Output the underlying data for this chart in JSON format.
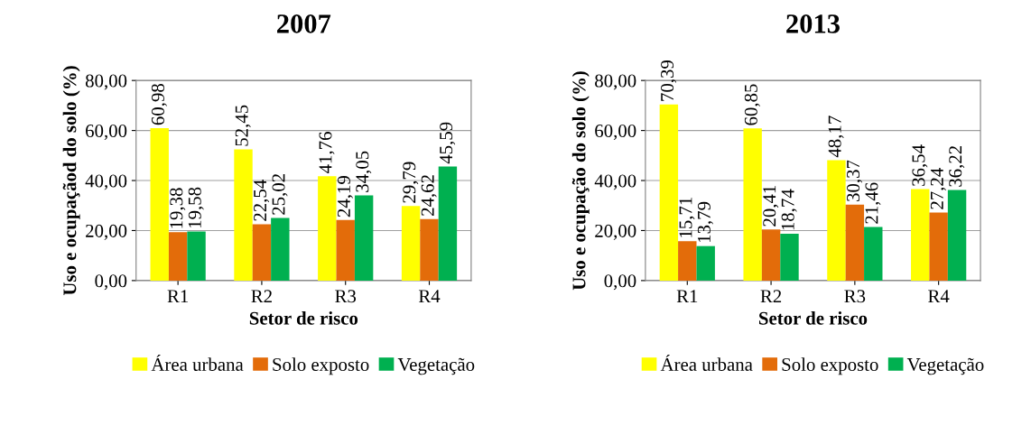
{
  "chart_data": [
    {
      "type": "bar",
      "title": "2007",
      "xlabel": "Setor de risco",
      "ylabel": "Uso e ocupaçãod do solo (%)",
      "categories": [
        "R1",
        "R2",
        "R3",
        "R4"
      ],
      "series": [
        {
          "name": "Área urbana",
          "color": "#ffff00",
          "values": [
            60.98,
            52.45,
            41.76,
            29.79
          ],
          "value_labels": [
            "60,98",
            "52,45",
            "41,76",
            "29,79"
          ]
        },
        {
          "name": "Solo exposto",
          "color": "#e36c0a",
          "values": [
            19.38,
            22.54,
            24.19,
            24.62
          ],
          "value_labels": [
            "19,38",
            "22,54",
            "24,19",
            "24,62"
          ]
        },
        {
          "name": "Vegetação",
          "color": "#00b050",
          "values": [
            19.58,
            25.02,
            34.05,
            45.59
          ],
          "value_labels": [
            "19,58",
            "25,02",
            "34,05",
            "45,59"
          ]
        }
      ],
      "ylim": [
        0,
        80
      ],
      "yticks": [
        {
          "value": 0,
          "label": "0,00"
        },
        {
          "value": 20,
          "label": "20,00"
        },
        {
          "value": 40,
          "label": "40,00"
        },
        {
          "value": 60,
          "label": "60,00"
        },
        {
          "value": 80,
          "label": "80,00"
        }
      ],
      "grid": "y",
      "legend": "bottom"
    },
    {
      "type": "bar",
      "title": "2013",
      "xlabel": "Setor de risco",
      "ylabel": "Uso e ocupação do solo (%)",
      "categories": [
        "R1",
        "R2",
        "R3",
        "R4"
      ],
      "series": [
        {
          "name": "Área urbana",
          "color": "#ffff00",
          "values": [
            70.39,
            60.85,
            48.17,
            36.54
          ],
          "value_labels": [
            "70,39",
            "60,85",
            "48,17",
            "36,54"
          ]
        },
        {
          "name": "Solo exposto",
          "color": "#e36c0a",
          "values": [
            15.71,
            20.41,
            30.37,
            27.24
          ],
          "value_labels": [
            "15,71",
            "20,41",
            "30,37",
            "27,24"
          ]
        },
        {
          "name": "Vegetação",
          "color": "#00b050",
          "values": [
            13.79,
            18.74,
            21.46,
            36.22
          ],
          "value_labels": [
            "13,79",
            "18,74",
            "21,46",
            "36,22"
          ]
        }
      ],
      "ylim": [
        0,
        80
      ],
      "yticks": [
        {
          "value": 0,
          "label": "0,00"
        },
        {
          "value": 20,
          "label": "20,00"
        },
        {
          "value": 40,
          "label": "40,00"
        },
        {
          "value": 60,
          "label": "60,00"
        },
        {
          "value": 80,
          "label": "80,00"
        }
      ],
      "grid": "y",
      "legend": "bottom"
    }
  ]
}
